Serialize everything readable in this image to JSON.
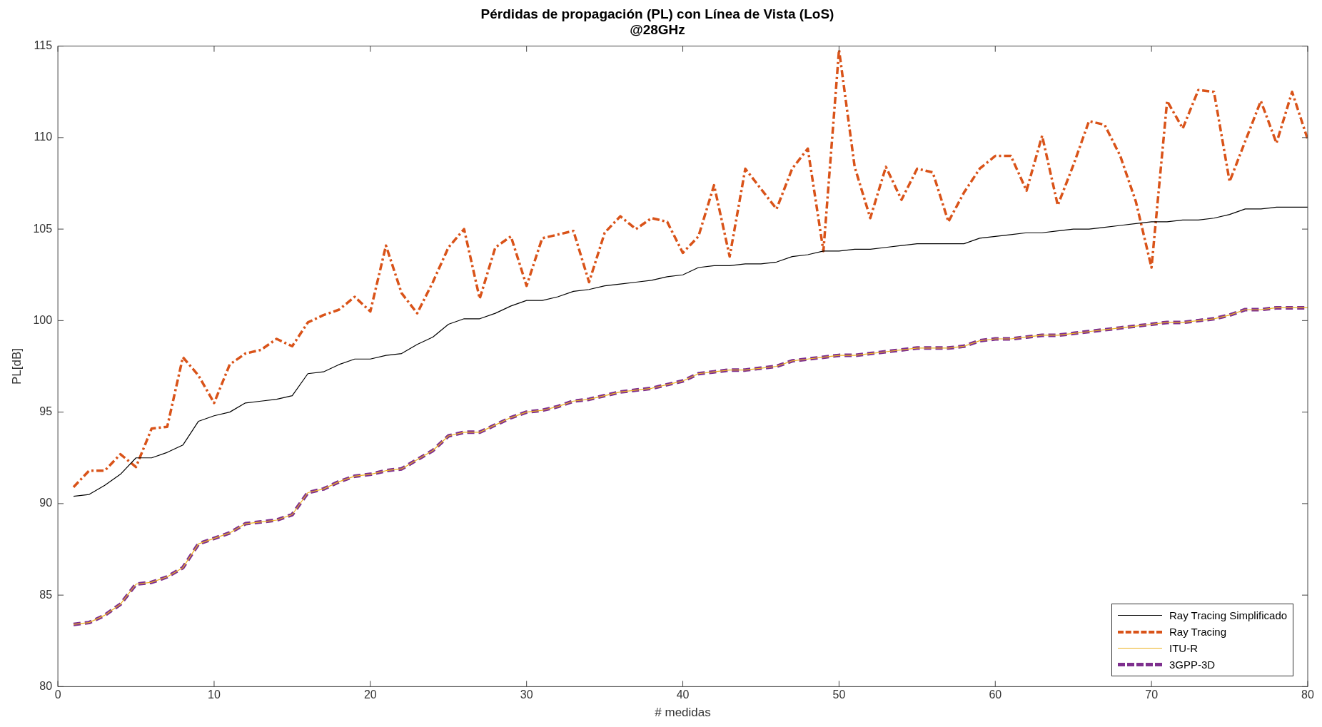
{
  "chart_data": {
    "type": "line",
    "title": "Pérdidas de propagación (PL) con Línea de Vista (LoS)\n@28GHz",
    "xlabel": "# medidas",
    "ylabel": "PL[dB]",
    "x": [
      1,
      2,
      3,
      4,
      5,
      6,
      7,
      8,
      9,
      10,
      11,
      12,
      13,
      14,
      15,
      16,
      17,
      18,
      19,
      20,
      21,
      22,
      23,
      24,
      25,
      26,
      27,
      28,
      29,
      30,
      31,
      32,
      33,
      34,
      35,
      36,
      37,
      38,
      39,
      40,
      41,
      42,
      43,
      44,
      45,
      46,
      47,
      48,
      49,
      50,
      51,
      52,
      53,
      54,
      55,
      56,
      57,
      58,
      59,
      60,
      61,
      62,
      63,
      64,
      65,
      66,
      67,
      68,
      69,
      70,
      71,
      72,
      73,
      74,
      75,
      76,
      77,
      78,
      79,
      80
    ],
    "xlim": [
      0,
      80
    ],
    "xticks": [
      0,
      10,
      20,
      30,
      40,
      50,
      60,
      70,
      80
    ],
    "ylim": [
      80,
      115
    ],
    "yticks": [
      80,
      85,
      90,
      95,
      100,
      105,
      110,
      115
    ],
    "grid": false,
    "legend": "bottom right",
    "marker": "none",
    "series": [
      {
        "name": "Ray Tracing Simplificado",
        "color": "#000000",
        "line_style": "solid",
        "values": [
          90.4,
          90.5,
          91.0,
          91.6,
          92.5,
          92.5,
          92.8,
          93.2,
          94.5,
          94.8,
          95.0,
          95.5,
          95.6,
          95.7,
          95.9,
          97.1,
          97.2,
          97.6,
          97.9,
          97.9,
          98.1,
          98.2,
          98.7,
          99.1,
          99.8,
          100.1,
          100.1,
          100.4,
          100.8,
          101.1,
          101.1,
          101.3,
          101.6,
          101.7,
          101.9,
          102.0,
          102.1,
          102.2,
          102.4,
          102.5,
          102.9,
          103.0,
          103.0,
          103.1,
          103.1,
          103.2,
          103.5,
          103.6,
          103.8,
          103.8,
          103.9,
          103.9,
          104.0,
          104.1,
          104.2,
          104.2,
          104.2,
          104.2,
          104.5,
          104.6,
          104.7,
          104.8,
          104.8,
          104.9,
          105.0,
          105.0,
          105.1,
          105.2,
          105.3,
          105.4,
          105.4,
          105.5,
          105.5,
          105.6,
          105.8,
          106.1,
          106.1,
          106.2,
          106.2,
          106.2
        ]
      },
      {
        "name": "Ray Tracing",
        "color": "#d95319",
        "line_style": "dashed",
        "values": [
          90.9,
          91.8,
          91.8,
          92.7,
          92.0,
          94.1,
          94.2,
          98.0,
          97.0,
          95.5,
          97.6,
          98.2,
          98.4,
          99.0,
          98.6,
          99.9,
          100.3,
          100.6,
          101.3,
          100.5,
          104.1,
          101.5,
          100.4,
          102.1,
          104.0,
          105.0,
          101.2,
          104.0,
          104.6,
          101.9,
          104.5,
          104.7,
          104.9,
          102.1,
          104.8,
          105.7,
          105.0,
          105.6,
          105.4,
          103.7,
          104.6,
          107.4,
          103.5,
          108.3,
          107.2,
          106.1,
          108.3,
          109.4,
          103.8,
          114.8,
          108.4,
          105.6,
          108.4,
          106.6,
          108.3,
          108.1,
          105.4,
          107.0,
          108.3,
          109.0,
          109.0,
          107.1,
          110.1,
          106.3,
          108.5,
          110.9,
          110.7,
          109.0,
          106.5,
          102.9,
          112.0,
          110.5,
          112.6,
          112.5,
          107.6,
          109.8,
          112.0,
          109.7,
          112.5,
          109.9
        ]
      },
      {
        "name": "ITU-R",
        "color": "#edb120",
        "line_style": "solid",
        "values": [
          83.4,
          83.5,
          83.9,
          84.5,
          85.6,
          85.7,
          86.0,
          86.5,
          87.8,
          88.1,
          88.4,
          88.9,
          89.0,
          89.1,
          89.4,
          90.6,
          90.8,
          91.2,
          91.5,
          91.6,
          91.8,
          91.9,
          92.4,
          92.9,
          93.7,
          93.9,
          93.9,
          94.3,
          94.7,
          95.0,
          95.1,
          95.3,
          95.6,
          95.7,
          95.9,
          96.1,
          96.2,
          96.3,
          96.5,
          96.7,
          97.1,
          97.2,
          97.3,
          97.3,
          97.4,
          97.5,
          97.8,
          97.9,
          98.0,
          98.1,
          98.1,
          98.2,
          98.3,
          98.4,
          98.5,
          98.5,
          98.5,
          98.6,
          98.9,
          99.0,
          99.0,
          99.1,
          99.2,
          99.2,
          99.3,
          99.4,
          99.5,
          99.6,
          99.7,
          99.8,
          99.9,
          99.9,
          100.0,
          100.1,
          100.3,
          100.6,
          100.6,
          100.7,
          100.7,
          100.7
        ]
      },
      {
        "name": "3GPP-3D",
        "color": "#7e2f8e",
        "line_style": "dashed",
        "values": [
          83.4,
          83.5,
          83.9,
          84.5,
          85.6,
          85.7,
          86.0,
          86.5,
          87.8,
          88.1,
          88.4,
          88.9,
          89.0,
          89.1,
          89.4,
          90.6,
          90.8,
          91.2,
          91.5,
          91.6,
          91.8,
          91.9,
          92.4,
          92.9,
          93.7,
          93.9,
          93.9,
          94.3,
          94.7,
          95.0,
          95.1,
          95.3,
          95.6,
          95.7,
          95.9,
          96.1,
          96.2,
          96.3,
          96.5,
          96.7,
          97.1,
          97.2,
          97.3,
          97.3,
          97.4,
          97.5,
          97.8,
          97.9,
          98.0,
          98.1,
          98.1,
          98.2,
          98.3,
          98.4,
          98.5,
          98.5,
          98.5,
          98.6,
          98.9,
          99.0,
          99.0,
          99.1,
          99.2,
          99.2,
          99.3,
          99.4,
          99.5,
          99.6,
          99.7,
          99.8,
          99.9,
          99.9,
          100.0,
          100.1,
          100.3,
          100.6,
          100.6,
          100.7,
          100.7,
          100.7
        ]
      }
    ]
  }
}
